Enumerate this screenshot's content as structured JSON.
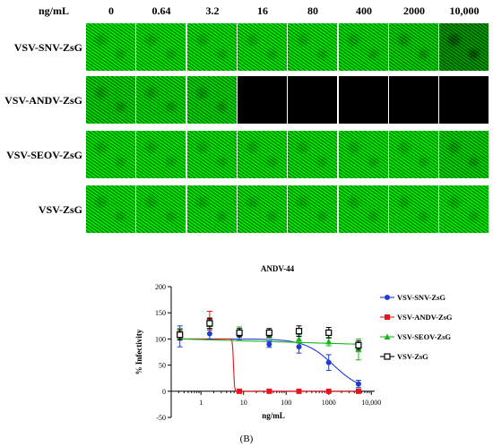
{
  "panel_a": {
    "unit_label": "ng/mL",
    "concentrations": [
      "0",
      "0.64",
      "3.2",
      "16",
      "80",
      "400",
      "2000",
      "10,000"
    ],
    "rows": [
      {
        "label": "VSV-SNV-ZsG",
        "green_level": [
          1,
          1,
          1,
          1,
          1,
          0.95,
          0.85,
          0.3
        ]
      },
      {
        "label": "VSV-ANDV-ZsG",
        "green_level": [
          0.85,
          0.9,
          0.85,
          0,
          0,
          0,
          0,
          0.02
        ]
      },
      {
        "label": "VSV-SEOV-ZsG",
        "green_level": [
          1,
          1,
          1,
          1,
          1,
          1,
          1,
          0.85
        ]
      },
      {
        "label": "VSV-ZsG",
        "green_level": [
          1,
          1,
          1,
          1,
          1,
          1,
          1,
          1
        ]
      }
    ]
  },
  "chart_data": {
    "type": "scatter",
    "title": "ANDV-44",
    "xlabel": "ng/mL",
    "ylabel": "% Infectivity",
    "x_scale": "log",
    "xlim": [
      0.2,
      12000
    ],
    "ylim": [
      -50,
      200
    ],
    "x_ticks": [
      1,
      10,
      100,
      1000,
      10000
    ],
    "x_tick_labels": [
      "1",
      "10",
      "100",
      "1000",
      "10,000"
    ],
    "y_ticks": [
      -50,
      0,
      50,
      100,
      150,
      200
    ],
    "y_tick_labels": [
      "-50",
      "0",
      "50",
      "100",
      "150",
      "200"
    ],
    "legend_position": "right",
    "series": [
      {
        "name": "VSV-SNV-ZsG",
        "color": "#1f3bd1",
        "marker": "circle",
        "x": [
          0.32,
          1.6,
          8,
          40,
          200,
          1000,
          5000
        ],
        "y": [
          105,
          110,
          107,
          90,
          85,
          55,
          14
        ],
        "err": [
          20,
          10,
          8,
          6,
          12,
          15,
          7
        ],
        "fit": "sigmoid"
      },
      {
        "name": "VSV-ANDV-ZsG",
        "color": "#e8141c",
        "marker": "square",
        "x": [
          0.32,
          1.6,
          8,
          40,
          200,
          1000,
          5000
        ],
        "y": [
          107,
          135,
          0,
          0,
          0,
          0,
          0
        ],
        "err": [
          8,
          18,
          0,
          0,
          0,
          0,
          0
        ],
        "fit": "steep"
      },
      {
        "name": "VSV-SEOV-ZsG",
        "color": "#16b81b",
        "marker": "triangle",
        "x": [
          0.32,
          1.6,
          8,
          40,
          200,
          1000,
          5000
        ],
        "y": [
          110,
          128,
          115,
          108,
          100,
          95,
          80
        ],
        "err": [
          10,
          8,
          8,
          6,
          8,
          8,
          20
        ],
        "fit": "flat"
      },
      {
        "name": "VSV-ZsG",
        "color": "#000000",
        "marker": "open-square",
        "x": [
          0.32,
          1.6,
          8,
          40,
          200,
          1000,
          5000
        ],
        "y": [
          108,
          130,
          112,
          112,
          115,
          112,
          88
        ],
        "err": [
          10,
          10,
          8,
          8,
          10,
          10,
          8
        ],
        "fit": "none"
      }
    ]
  },
  "panel_label": "(B)"
}
